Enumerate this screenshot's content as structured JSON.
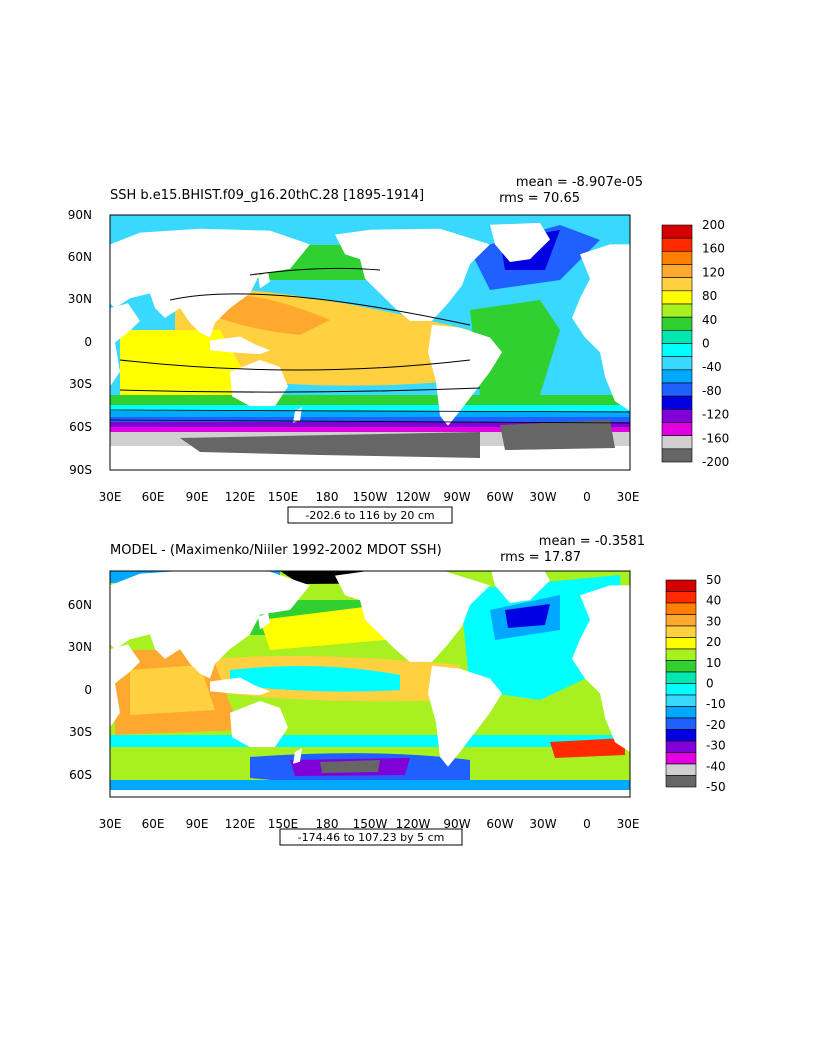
{
  "panels": [
    {
      "title": "SSH b.e15.BHIST.f09_g16.20thC.28 [1895-1914]",
      "stats": {
        "mean": "mean = -8.907e-05",
        "rms": "rms = 70.65"
      },
      "lat_labels": [
        "90N",
        "60N",
        "30N",
        "0",
        "30S",
        "60S",
        "90S"
      ],
      "lon_labels": [
        "30E",
        "60E",
        "90E",
        "120E",
        "150E",
        "180",
        "150W",
        "120W",
        "90W",
        "60W",
        "30W",
        "0",
        "30E"
      ],
      "contour_info": "-202.6 to 116 by 20 cm",
      "colorbar": {
        "labels": [
          "200",
          "160",
          "120",
          "80",
          "40",
          "0",
          "-40",
          "-80",
          "-120",
          "-160",
          "-200"
        ],
        "colors": [
          "#d40000",
          "#ff2a00",
          "#ff7f00",
          "#ffa830",
          "#ffd040",
          "#ffff00",
          "#a8f020",
          "#30d030",
          "#00e8b0",
          "#00ffff",
          "#38d8ff",
          "#00a8ff",
          "#2060ff",
          "#0000e0",
          "#8000d8",
          "#e000e0",
          "#d0d0d0",
          "#666666"
        ]
      }
    },
    {
      "title": "MODEL - (Maximenko/Niiler 1992-2002 MDOT SSH)",
      "stats": {
        "mean": "mean = -0.3581",
        "rms": "rms = 17.87"
      },
      "lat_labels": [
        "60N",
        "30N",
        "0",
        "30S",
        "60S"
      ],
      "lon_labels": [
        "30E",
        "60E",
        "90E",
        "120E",
        "150E",
        "180",
        "150W",
        "120W",
        "90W",
        "60W",
        "30W",
        "0",
        "30E"
      ],
      "contour_info": "-174.46 to 107.23 by 5 cm",
      "colorbar": {
        "labels": [
          "50",
          "40",
          "30",
          "20",
          "10",
          "0",
          "-10",
          "-20",
          "-30",
          "-40",
          "-50"
        ],
        "colors": [
          "#d40000",
          "#ff2a00",
          "#ff7f00",
          "#ffa830",
          "#ffd040",
          "#ffff00",
          "#a8f020",
          "#30d030",
          "#00e8b0",
          "#00ffff",
          "#38d8ff",
          "#00a8ff",
          "#2060ff",
          "#0000e0",
          "#8000d8",
          "#e000e0",
          "#d0d0d0",
          "#666666"
        ]
      }
    }
  ]
}
